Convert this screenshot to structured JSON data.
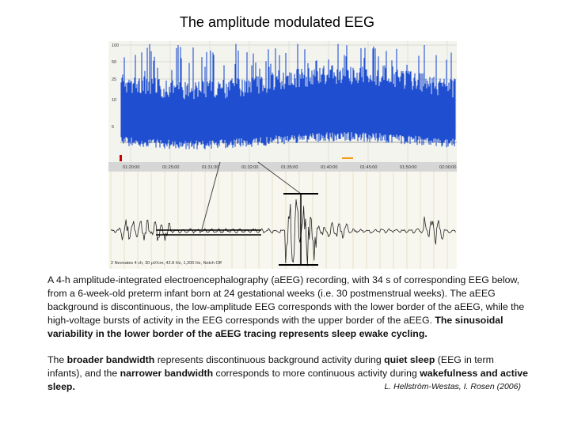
{
  "title": "The amplitude modulated EEG",
  "figure": {
    "y_labels": [
      "100",
      "50",
      "25",
      "10",
      "5"
    ],
    "time_labels": [
      "01:20:00",
      "01:25:00",
      "01:31:30",
      "01:32:00",
      "01:35:00",
      "01:40:00",
      "01:45:00",
      "01:50:00",
      "02:00:00"
    ],
    "footer": "2 Neonates 4 ch, 30 µV/cm, 42.8 Hz, 1,200 Hz, Notch Off"
  },
  "caption": {
    "paragraphs": [
      {
        "runs": [
          {
            "text": "A 4-h amplitude-integrated electroencephalography (aEEG) recording, with 34 s of corresponding EEG below, from a 6-week-old preterm infant born at 24 gestational weeks (i.e. 30 postmenstrual weeks). The aEEG background is discontinuous, the low-amplitude EEG corresponds with the lower border of the aEEG, while the high-voltage bursts of activity in the EEG corresponds with the upper border of the aEEG. ",
            "bold": false
          },
          {
            "text": "The sinusoidal variability in the lower border of the aEEG tracing represents sleep ewake cycling.",
            "bold": true
          }
        ]
      },
      {
        "runs": [
          {
            "text": " The ",
            "bold": false
          },
          {
            "text": "broader bandwidth",
            "bold": true
          },
          {
            "text": " represents discontinuous background activity during ",
            "bold": false
          },
          {
            "text": "quiet sleep",
            "bold": true
          },
          {
            "text": " (EEG in term infants), and the ",
            "bold": false
          },
          {
            "text": "narrower bandwidth",
            "bold": true
          },
          {
            "text": " corresponds to more continuous activity during ",
            "bold": false
          },
          {
            "text": "wakefulness and active sleep.",
            "bold": true
          }
        ]
      }
    ]
  },
  "citation": "L. Hellström-Westas, I. Rosen (2006)"
}
